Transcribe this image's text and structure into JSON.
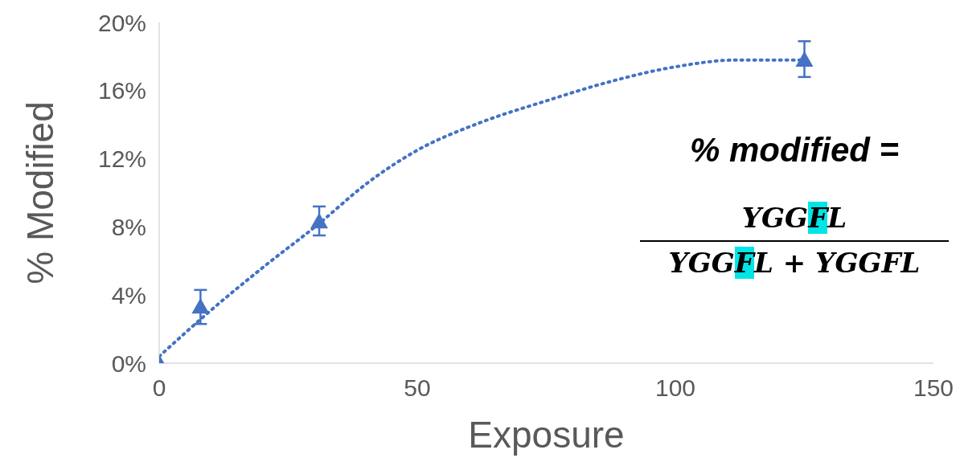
{
  "chart_data": {
    "type": "scatter",
    "xlabel": "Exposure",
    "ylabel": "% Modified",
    "xlim": [
      0,
      150
    ],
    "xticks": [
      0,
      50,
      100,
      150
    ],
    "ylim": [
      0,
      20
    ],
    "yticks": [
      {
        "value": 0,
        "label": "0%"
      },
      {
        "value": 4,
        "label": "4%"
      },
      {
        "value": 8,
        "label": "8%"
      },
      {
        "value": 12,
        "label": "12%"
      },
      {
        "value": 16,
        "label": "16%"
      },
      {
        "value": 20,
        "label": "20%"
      }
    ],
    "series": [
      {
        "color": "#4472c4",
        "marker": "triangle",
        "x": [
          0,
          8,
          31,
          125
        ],
        "values": [
          0,
          3.3,
          8.3,
          17.8
        ],
        "errors": [
          null,
          [
            2.3,
            4.3
          ],
          [
            7.5,
            9.2
          ],
          [
            16.8,
            18.9
          ]
        ]
      },
      {
        "type": "line",
        "color": "#4472c4",
        "line_style": "dotted",
        "marker": "none",
        "x": [
          0,
          10,
          20,
          31,
          40,
          50,
          62,
          75,
          87,
          100,
          112,
          125
        ],
        "values": [
          0.4,
          3.1,
          5.6,
          8.2,
          10.5,
          12.5,
          14.1,
          15.4,
          16.5,
          17.4,
          17.8,
          17.8
        ]
      }
    ],
    "annotations": [
      "% modified =",
      "YGGFL",
      "YGGFL + YGGFL"
    ]
  }
}
